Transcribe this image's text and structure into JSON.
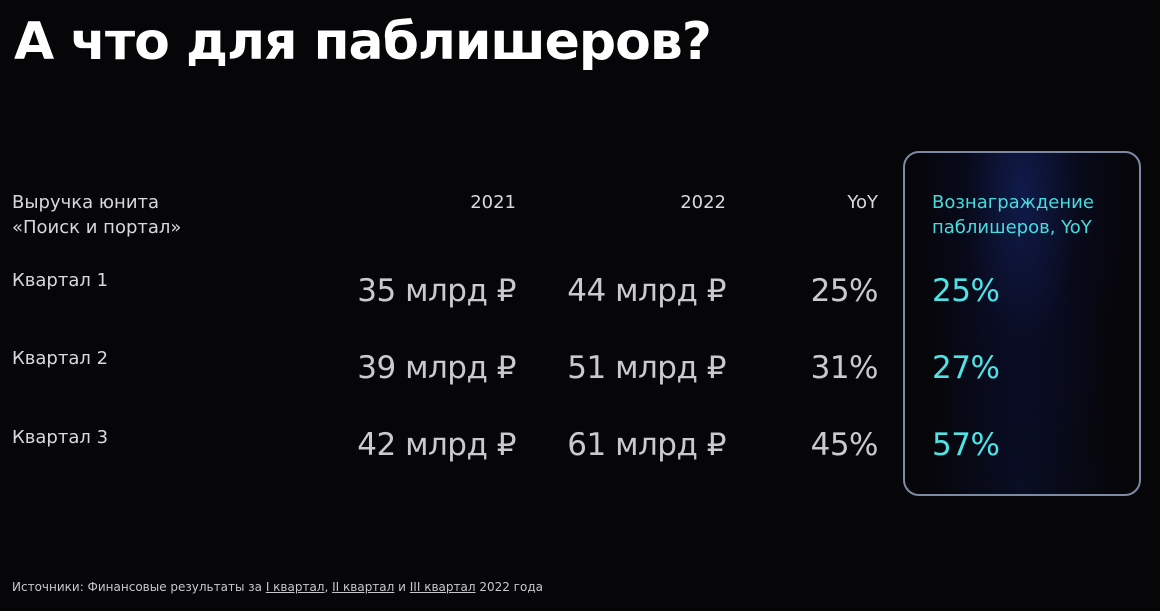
{
  "title": "А что для паблишеров?",
  "table": {
    "row_header": [
      "Выручка юнита",
      "«Поиск и портал»"
    ],
    "col_2021": "2021",
    "col_2022": "2022",
    "col_yoy": "YoY",
    "col_reward": [
      "Вознаграждение",
      "паблишеров, YoY"
    ],
    "rows": [
      {
        "label": "Квартал 1",
        "v2021": "35 млрд ₽",
        "v2022": "44 млрд ₽",
        "yoy": "25%",
        "reward": "25%"
      },
      {
        "label": "Квартал 2",
        "v2021": "39 млрд ₽",
        "v2022": "51 млрд ₽",
        "yoy": "31%",
        "reward": "27%"
      },
      {
        "label": "Квартал 3",
        "v2021": "42 млрд ₽",
        "v2022": "61 млрд ₽",
        "yoy": "45%",
        "reward": "57%"
      }
    ]
  },
  "footnote": {
    "prefix": "Источники: Финансовые результаты за ",
    "link1": "I квартал",
    "sep1": ", ",
    "link2": "II квартал",
    "sep2": " и ",
    "link3": "III квартал",
    "suffix": " 2022 года"
  },
  "colors": {
    "background": "#060508",
    "accent": "#4fe3e6",
    "box_border": "#7d8aa6"
  }
}
